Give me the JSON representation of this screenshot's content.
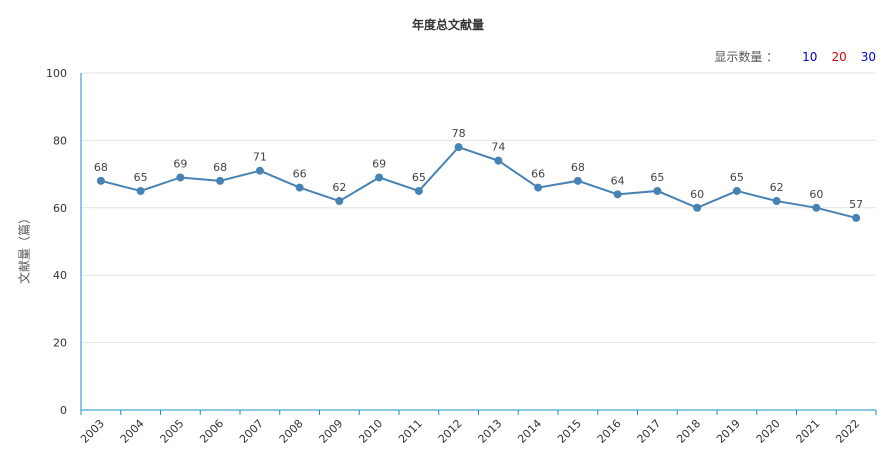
{
  "chart_data": {
    "type": "line",
    "title": "年度总文献量",
    "ylabel": "文献量（篇）",
    "xlabel": "",
    "ylim": [
      0,
      100
    ],
    "yticks": [
      0,
      20,
      40,
      60,
      80,
      100
    ],
    "categories": [
      "2003",
      "2004",
      "2005",
      "2006",
      "2007",
      "2008",
      "2009",
      "2010",
      "2011",
      "2012",
      "2013",
      "2014",
      "2015",
      "2016",
      "2017",
      "2018",
      "2019",
      "2020",
      "2021",
      "2022"
    ],
    "series": [
      {
        "values": [
          68,
          65,
          69,
          68,
          71,
          66,
          62,
          69,
          65,
          78,
          74,
          66,
          68,
          64,
          65,
          60,
          65,
          62,
          60,
          57
        ]
      }
    ],
    "grid": true,
    "line_color": "#4682b4",
    "axis_color": "#1a8fc9"
  },
  "display_count": {
    "label": "显示数量 ：",
    "options": [
      {
        "text": "10",
        "color": "#0000cc"
      },
      {
        "text": "20",
        "color": "#dd0000"
      },
      {
        "text": "30",
        "color": "#0000cc"
      }
    ]
  }
}
